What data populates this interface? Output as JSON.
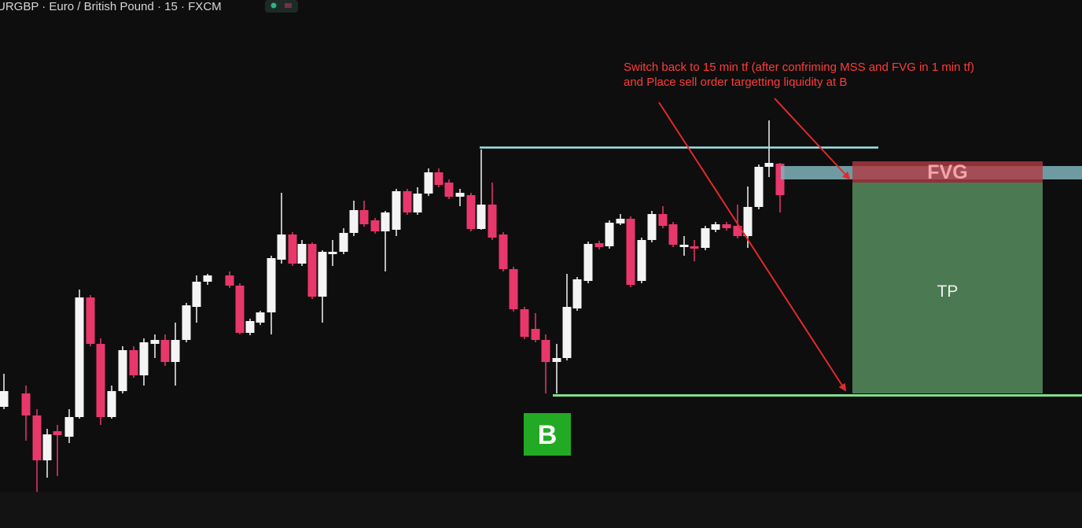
{
  "header": {
    "title": "URGBP · Euro / British Pound · 15 · FXCM"
  },
  "annotation": {
    "lines": [
      "Switch back to 15 min tf (after confriming MSS and FVG in 1 min tf)",
      "and Place sell order targetting liquidity at B"
    ]
  },
  "zones": {
    "fvg": "FVG",
    "tp": "TP"
  },
  "marker": {
    "label": "B"
  }
}
